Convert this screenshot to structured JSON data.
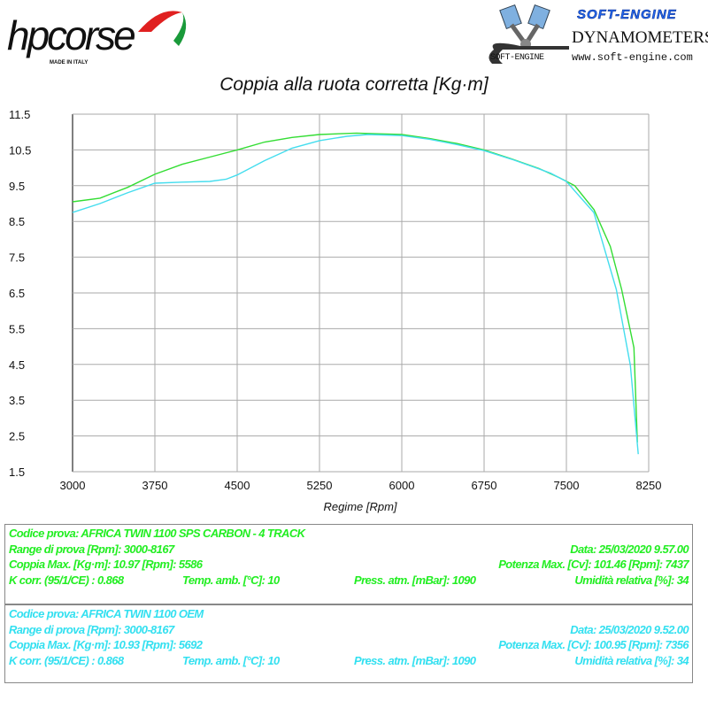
{
  "logos": {
    "hp": {
      "text": "hpcorse",
      "sub": "MADE IN ITALY"
    },
    "softengine": {
      "title": "SOFT-ENGINE",
      "subtitle": "DYNAMOMETERS",
      "url": "www.soft-engine.com",
      "mark": "SOFT-ENGINE"
    }
  },
  "chart_data": {
    "type": "line",
    "title": "Coppia alla ruota corretta [Kg·m]",
    "xlabel": "Regime [Rpm]",
    "ylabel": "",
    "xlim": [
      3000,
      8250
    ],
    "ylim": [
      1.5,
      11.5
    ],
    "x_ticks": [
      "3000",
      "3750",
      "4500",
      "5250",
      "6000",
      "6750",
      "7500",
      "8250"
    ],
    "y_ticks": [
      "11.5",
      "10.5",
      "9.5",
      "8.5",
      "7.5",
      "6.5",
      "5.5",
      "4.5",
      "3.5",
      "2.5",
      "1.5"
    ],
    "grid": true,
    "series": [
      {
        "color": "#33dd33",
        "x": [
          3000,
          3250,
          3500,
          3750,
          4000,
          4250,
          4500,
          4750,
          5000,
          5250,
          5586,
          6000,
          6250,
          6500,
          6750,
          7000,
          7250,
          7437,
          7576,
          7752,
          7900,
          8003,
          8115,
          8147
        ],
        "y": [
          9.05,
          9.15,
          9.45,
          9.82,
          10.1,
          10.3,
          10.5,
          10.72,
          10.85,
          10.93,
          10.97,
          10.93,
          10.82,
          10.68,
          10.5,
          10.25,
          9.98,
          9.72,
          9.5,
          8.83,
          7.8,
          6.6,
          4.97,
          2.32
        ]
      },
      {
        "color": "#44ddee",
        "x": [
          3000,
          3250,
          3500,
          3750,
          4000,
          4250,
          4400,
          4500,
          4750,
          5000,
          5250,
          5500,
          5692,
          6000,
          6250,
          6500,
          6750,
          7000,
          7250,
          7356,
          7500,
          7750,
          7955,
          8083,
          8155
        ],
        "y": [
          8.75,
          9.0,
          9.3,
          9.57,
          9.6,
          9.62,
          9.68,
          9.8,
          10.2,
          10.55,
          10.76,
          10.88,
          10.93,
          10.9,
          10.8,
          10.65,
          10.48,
          10.24,
          9.97,
          9.85,
          9.62,
          8.75,
          6.6,
          4.47,
          1.99
        ]
      }
    ]
  },
  "tests": [
    {
      "color": "#22ee22",
      "codice": "Codice prova: AFRICA TWIN 1100  SPS CARBON  -  4 TRACK",
      "range": "Range di prova [Rpm]: 3000-8167",
      "data": "Data: 25/03/2020   9.57.00",
      "coppia": "Coppia Max. [Kg·m]: 10.97   [Rpm]: 5586",
      "potenza": "Potenza Max. [Cv]: 101.46   [Rpm]: 7437",
      "kcorr": "K corr. (95/1/CE) : 0.868",
      "temp": "Temp. amb. [°C]: 10",
      "press": "Press. atm. [mBar]: 1090",
      "umid": "Umidità relativa [%]: 34"
    },
    {
      "color": "#33e0f0",
      "codice": "Codice prova: AFRICA TWIN 1100  OEM",
      "range": "Range di prova [Rpm]: 3000-8167",
      "data": "Data: 25/03/2020   9.52.00",
      "coppia": "Coppia Max. [Kg·m]: 10.93   [Rpm]: 5692",
      "potenza": "Potenza Max. [Cv]: 100.95   [Rpm]: 7356",
      "kcorr": "K corr. (95/1/CE) : 0.868",
      "temp": "Temp. amb. [°C]: 10",
      "press": "Press. atm. [mBar]: 1090",
      "umid": "Umidità relativa [%]: 34"
    }
  ]
}
